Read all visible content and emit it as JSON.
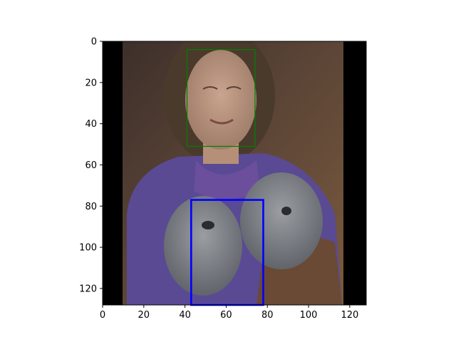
{
  "chart_data": {
    "type": "image",
    "image_size": [
      128,
      128
    ],
    "xlim": [
      0,
      128
    ],
    "ylim": [
      128,
      0
    ],
    "x_ticks": [
      0,
      20,
      40,
      60,
      80,
      100,
      120
    ],
    "y_ticks": [
      0,
      20,
      40,
      60,
      80,
      100,
      120
    ],
    "x_tick_labels": [
      "0",
      "20",
      "40",
      "60",
      "80",
      "100",
      "120"
    ],
    "y_tick_labels": [
      "0",
      "20",
      "40",
      "60",
      "80",
      "100",
      "120"
    ],
    "image_content": {
      "letterbox": {
        "left_x_end": 9.5,
        "right_x_start": 117.5,
        "color": "#000000"
      }
    },
    "boxes": [
      {
        "x0": 41,
        "y0": 4,
        "x1": 74,
        "y1": 51,
        "color": "#008000",
        "linewidth": 1.2
      },
      {
        "x0": 43,
        "y0": 77,
        "x1": 78,
        "y1": 128,
        "color": "#0000ff",
        "linewidth": 2.6
      }
    ],
    "title": "",
    "xlabel": "",
    "ylabel": ""
  }
}
